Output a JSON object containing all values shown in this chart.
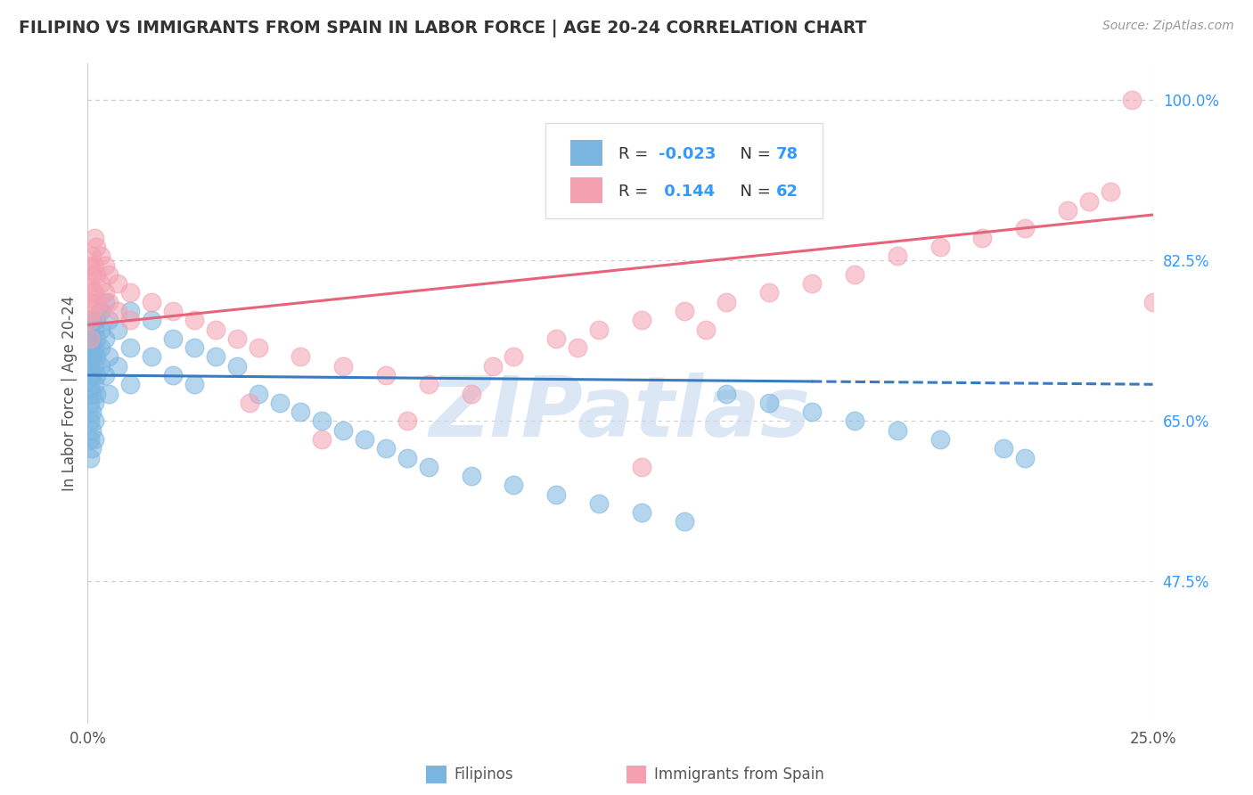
{
  "title": "FILIPINO VS IMMIGRANTS FROM SPAIN IN LABOR FORCE | AGE 20-24 CORRELATION CHART",
  "source_text": "Source: ZipAtlas.com",
  "ylabel": "In Labor Force | Age 20-24",
  "xlim": [
    0.0,
    25.0
  ],
  "ylim": [
    32.0,
    104.0
  ],
  "x_tick_labels": [
    "0.0%",
    "25.0%"
  ],
  "x_tick_vals": [
    0.0,
    25.0
  ],
  "y_tick_labels_right": [
    "47.5%",
    "65.0%",
    "82.5%",
    "100.0%"
  ],
  "y_tick_values_right": [
    47.5,
    65.0,
    82.5,
    100.0
  ],
  "blue_color": "#7ab5e0",
  "pink_color": "#f4a0b0",
  "blue_line_color": "#3a7abf",
  "pink_line_color": "#e8637a",
  "watermark_text": "ZIPatlas",
  "watermark_color": "#c5d8ef",
  "background_color": "#ffffff",
  "grid_color": "#cccccc",
  "filipinos_x": [
    0.05,
    0.05,
    0.05,
    0.05,
    0.05,
    0.05,
    0.05,
    0.05,
    0.05,
    0.05,
    0.1,
    0.1,
    0.1,
    0.1,
    0.1,
    0.1,
    0.1,
    0.1,
    0.1,
    0.15,
    0.15,
    0.15,
    0.15,
    0.15,
    0.15,
    0.15,
    0.2,
    0.2,
    0.2,
    0.2,
    0.2,
    0.3,
    0.3,
    0.3,
    0.3,
    0.4,
    0.4,
    0.4,
    0.5,
    0.5,
    0.5,
    0.7,
    0.7,
    1.0,
    1.0,
    1.0,
    1.5,
    1.5,
    2.0,
    2.0,
    2.5,
    2.5,
    3.0,
    3.5,
    4.0,
    4.5,
    5.0,
    5.5,
    6.0,
    6.5,
    7.0,
    7.5,
    8.0,
    9.0,
    10.0,
    11.0,
    12.0,
    13.0,
    14.0,
    15.0,
    16.0,
    17.0,
    18.0,
    19.0,
    20.0,
    21.5,
    22.0
  ],
  "filipinos_y": [
    72.0,
    70.0,
    68.5,
    67.0,
    65.0,
    63.0,
    61.0,
    73.0,
    75.0,
    71.0,
    74.0,
    72.0,
    70.0,
    68.0,
    66.0,
    64.0,
    62.0,
    76.0,
    73.0,
    75.0,
    73.0,
    71.0,
    69.0,
    67.0,
    65.0,
    63.0,
    76.0,
    74.0,
    72.0,
    70.0,
    68.0,
    77.0,
    75.0,
    73.0,
    71.0,
    78.0,
    74.0,
    70.0,
    76.0,
    72.0,
    68.0,
    75.0,
    71.0,
    77.0,
    73.0,
    69.0,
    76.0,
    72.0,
    74.0,
    70.0,
    73.0,
    69.0,
    72.0,
    71.0,
    68.0,
    67.0,
    66.0,
    65.0,
    64.0,
    63.0,
    62.0,
    61.0,
    60.0,
    59.0,
    58.0,
    57.0,
    56.0,
    55.0,
    54.0,
    68.0,
    67.0,
    66.0,
    65.0,
    64.0,
    63.0,
    62.0,
    61.0
  ],
  "spain_x": [
    0.05,
    0.05,
    0.05,
    0.05,
    0.05,
    0.1,
    0.1,
    0.1,
    0.1,
    0.15,
    0.15,
    0.15,
    0.2,
    0.2,
    0.2,
    0.3,
    0.3,
    0.3,
    0.4,
    0.4,
    0.5,
    0.5,
    0.7,
    0.7,
    1.0,
    1.0,
    1.5,
    2.0,
    2.5,
    3.0,
    3.5,
    4.0,
    5.0,
    6.0,
    7.0,
    8.0,
    9.0,
    10.0,
    11.0,
    12.0,
    13.0,
    14.0,
    15.0,
    16.0,
    17.0,
    18.0,
    19.0,
    20.0,
    21.0,
    22.0,
    23.0,
    23.5,
    24.0,
    24.5,
    25.0,
    13.0,
    5.5,
    7.5,
    3.8,
    9.5,
    11.5,
    14.5
  ],
  "spain_y": [
    82.0,
    80.0,
    78.0,
    76.0,
    74.0,
    83.0,
    81.0,
    79.0,
    77.0,
    85.0,
    82.0,
    79.0,
    84.0,
    81.0,
    78.0,
    83.0,
    80.0,
    77.0,
    82.0,
    79.0,
    81.0,
    78.0,
    80.0,
    77.0,
    79.0,
    76.0,
    78.0,
    77.0,
    76.0,
    75.0,
    74.0,
    73.0,
    72.0,
    71.0,
    70.0,
    69.0,
    68.0,
    72.0,
    74.0,
    75.0,
    76.0,
    77.0,
    78.0,
    79.0,
    80.0,
    81.0,
    83.0,
    84.0,
    85.0,
    86.0,
    88.0,
    89.0,
    90.0,
    100.0,
    78.0,
    60.0,
    63.0,
    65.0,
    67.0,
    71.0,
    73.0,
    75.0
  ]
}
